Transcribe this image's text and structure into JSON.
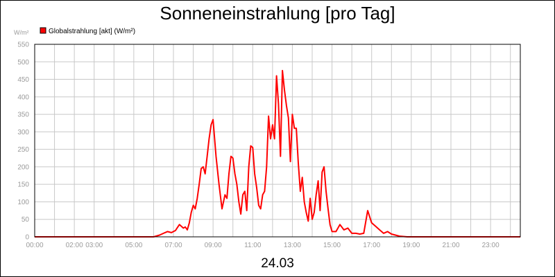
{
  "chart_data": {
    "type": "line",
    "title": "Sonneneinstrahlung [pro Tag]",
    "ylabel": "W/m²",
    "xlabel": "24.03",
    "ylim": [
      0,
      550
    ],
    "xlim": [
      0,
      24.5
    ],
    "yticks": [
      0,
      50,
      100,
      150,
      200,
      250,
      300,
      350,
      400,
      450,
      500,
      550
    ],
    "xticks": [
      {
        "pos": 0,
        "label": "00:00"
      },
      {
        "pos": 2,
        "label": "02:00"
      },
      {
        "pos": 3,
        "label": "03:00"
      },
      {
        "pos": 5,
        "label": "05:00"
      },
      {
        "pos": 7,
        "label": "07:00"
      },
      {
        "pos": 9,
        "label": "09:00"
      },
      {
        "pos": 11,
        "label": "11:00"
      },
      {
        "pos": 13,
        "label": "13:00"
      },
      {
        "pos": 15,
        "label": "15:00"
      },
      {
        "pos": 17,
        "label": "17:00"
      },
      {
        "pos": 19,
        "label": "19:00"
      },
      {
        "pos": 21,
        "label": "21:00"
      },
      {
        "pos": 23,
        "label": "23:00"
      }
    ],
    "vgrid": [
      0,
      1,
      2,
      3,
      4,
      5,
      6,
      7,
      8,
      9,
      10,
      11,
      12,
      13,
      14,
      15,
      16,
      17,
      18,
      19,
      20,
      21,
      22,
      23,
      24
    ],
    "grid": true,
    "legend_position": "top-left",
    "series": [
      {
        "name": "Globalstrahlung [akt] (W/m²)",
        "color": "#ff0000",
        "x": [
          0,
          6.0,
          6.3,
          6.5,
          6.7,
          6.9,
          7.1,
          7.3,
          7.5,
          7.6,
          7.7,
          7.8,
          7.9,
          8.0,
          8.1,
          8.2,
          8.3,
          8.4,
          8.5,
          8.6,
          8.7,
          8.8,
          8.9,
          9.0,
          9.15,
          9.3,
          9.45,
          9.6,
          9.7,
          9.8,
          9.9,
          10.0,
          10.1,
          10.2,
          10.3,
          10.4,
          10.5,
          10.6,
          10.7,
          10.8,
          10.9,
          11.0,
          11.1,
          11.2,
          11.3,
          11.4,
          11.5,
          11.6,
          11.7,
          11.8,
          11.9,
          12.0,
          12.1,
          12.2,
          12.3,
          12.4,
          12.5,
          12.6,
          12.7,
          12.8,
          12.9,
          13.0,
          13.1,
          13.2,
          13.3,
          13.4,
          13.5,
          13.6,
          13.7,
          13.8,
          13.9,
          14.0,
          14.1,
          14.2,
          14.3,
          14.4,
          14.5,
          14.6,
          14.7,
          14.8,
          14.9,
          15.0,
          15.2,
          15.4,
          15.6,
          15.8,
          16.0,
          16.2,
          16.4,
          16.6,
          16.8,
          17.0,
          17.2,
          17.4,
          17.6,
          17.8,
          18.0,
          18.2,
          18.4,
          18.6,
          18.8,
          19.0,
          19.5,
          24.5
        ],
        "values": [
          0,
          0,
          5,
          10,
          15,
          12,
          18,
          35,
          25,
          28,
          20,
          40,
          70,
          90,
          80,
          110,
          150,
          195,
          200,
          180,
          230,
          280,
          320,
          335,
          230,
          150,
          80,
          120,
          110,
          180,
          230,
          225,
          180,
          150,
          100,
          65,
          120,
          130,
          75,
          200,
          260,
          255,
          180,
          140,
          90,
          80,
          120,
          130,
          200,
          345,
          280,
          320,
          280,
          460,
          380,
          230,
          475,
          420,
          375,
          340,
          215,
          350,
          310,
          310,
          210,
          130,
          170,
          100,
          70,
          45,
          110,
          50,
          70,
          120,
          160,
          75,
          185,
          200,
          130,
          80,
          35,
          15,
          15,
          35,
          20,
          25,
          10,
          10,
          8,
          10,
          75,
          40,
          30,
          20,
          10,
          15,
          8,
          5,
          2,
          1,
          0,
          0,
          0,
          0
        ]
      }
    ]
  }
}
